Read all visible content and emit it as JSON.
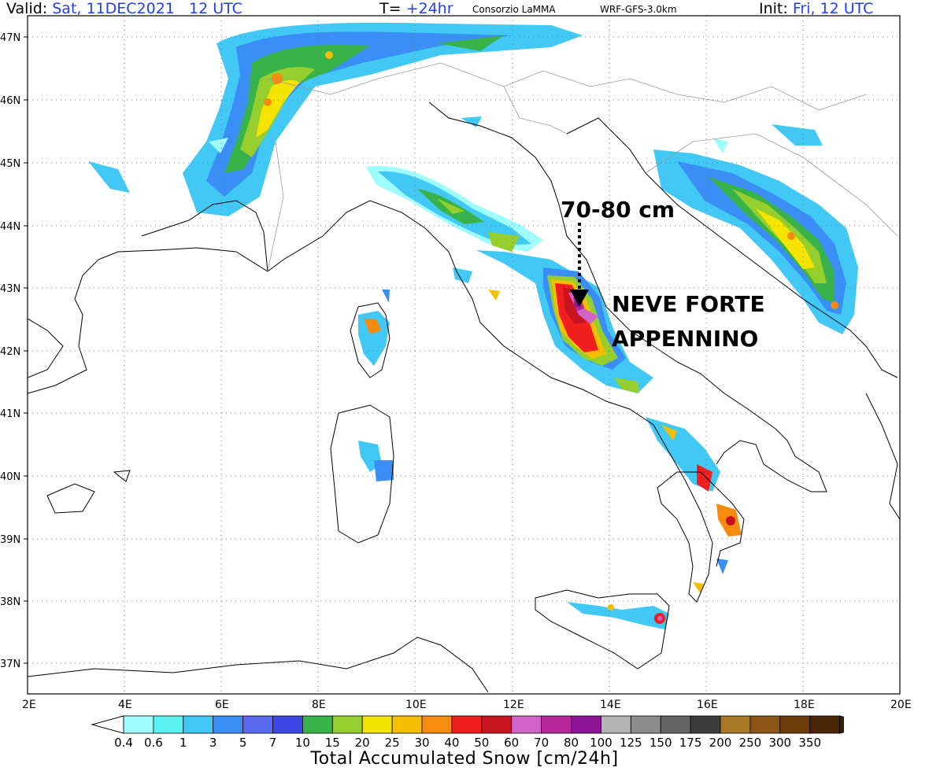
{
  "header": {
    "valid_label": "Valid:",
    "valid_value": "Sat, 11DEC2021",
    "valid_time": "12 UTC",
    "t_label": "T=",
    "t_value": "+24hr",
    "org": "Consorzio LaMMA",
    "model": "WRF-GFS-3.0km",
    "init_label": "Init:",
    "init_value": "Fri, 12 UTC"
  },
  "map": {
    "lat_labels": [
      "47N",
      "46N",
      "45N",
      "44N",
      "43N",
      "42N",
      "41N",
      "40N",
      "39N",
      "38N",
      "37N"
    ],
    "lon_labels": [
      "2E",
      "4E",
      "6E",
      "8E",
      "10E",
      "12E",
      "14E",
      "16E",
      "18E",
      "20E"
    ],
    "annotation_amount": "70-80 cm",
    "annotation_line1": "NEVE FORTE",
    "annotation_line2": "APPENNINO"
  },
  "legend": {
    "title": "Total Accumulated Snow [cm/24h]",
    "labels": [
      "0.4",
      "0.6",
      "1",
      "3",
      "5",
      "7",
      "10",
      "15",
      "20",
      "25",
      "30",
      "40",
      "50",
      "60",
      "70",
      "80",
      "100",
      "125",
      "150",
      "175",
      "200",
      "250",
      "300",
      "350"
    ],
    "colors": [
      "#9ffcfc",
      "#5cf2f2",
      "#41c8f5",
      "#3a8ef5",
      "#5a6af0",
      "#3f46e6",
      "#38b34a",
      "#96cf2d",
      "#f5e400",
      "#f5be00",
      "#f58c10",
      "#f01e1e",
      "#c8141e",
      "#d264c8",
      "#b4289c",
      "#8c1496",
      "#b4b4b4",
      "#8c8c8c",
      "#646464",
      "#3c3c3c",
      "#a67828",
      "#8c5514",
      "#6e3c0a",
      "#4a2505"
    ]
  }
}
